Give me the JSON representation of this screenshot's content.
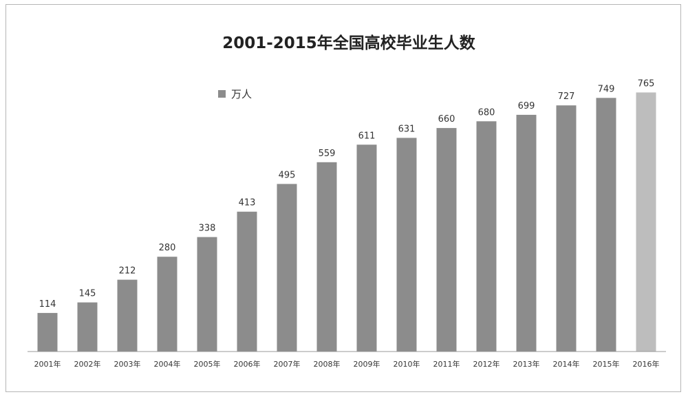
{
  "chart_data": {
    "type": "bar",
    "title": "2001-2015年全国高校毕业生人数",
    "xlabel": "",
    "ylabel": "",
    "categories": [
      "2001年",
      "2002年",
      "2003年",
      "2004年",
      "2005年",
      "2006年",
      "2007年",
      "2008年",
      "2009年",
      "2010年",
      "2011年",
      "2012年",
      "2013年",
      "2014年",
      "2015年",
      "2016年"
    ],
    "series": [
      {
        "name": "万人",
        "values": [
          114,
          145,
          212,
          280,
          338,
          413,
          495,
          559,
          611,
          631,
          660,
          680,
          699,
          727,
          749,
          765
        ]
      }
    ],
    "ylim": [
      0,
      900
    ],
    "grid": false,
    "legend_position": "top-left",
    "colors": {
      "bar": "#8c8c8c",
      "bar_highlight": "#bdbdbd",
      "axis": "#999999"
    },
    "highlight_category": "2016年"
  }
}
